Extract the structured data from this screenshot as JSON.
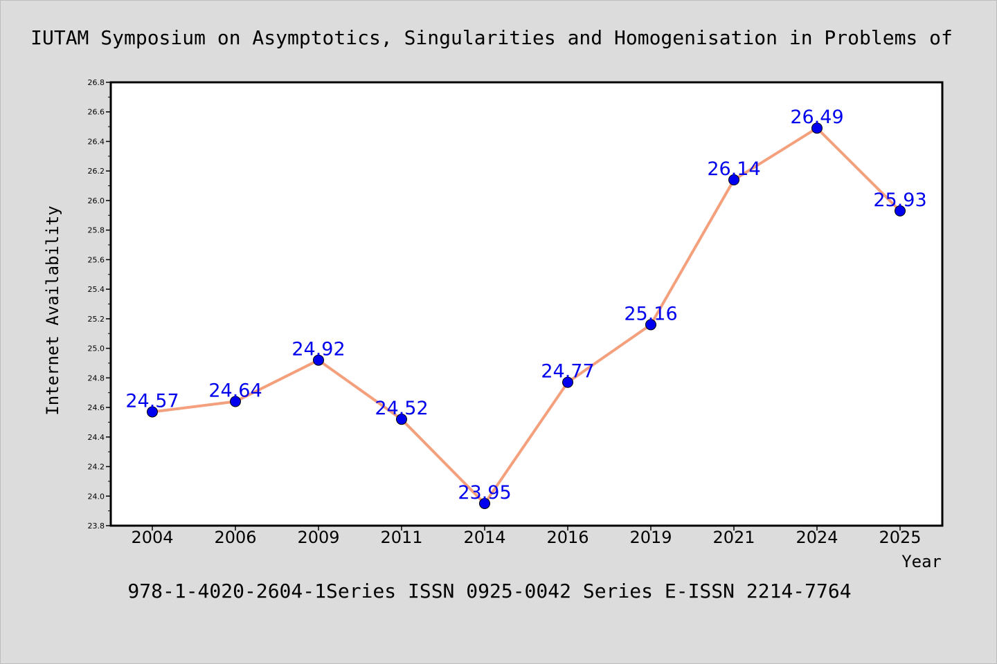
{
  "chart_data": {
    "type": "line",
    "title": "IUTAM Symposium on Asymptotics, Singularities and Homogenisation in Problems of",
    "xlabel": "Year",
    "ylabel": "Internet Availability",
    "footer": "978-1-4020-2604-1Series ISSN 0925-0042 Series E-ISSN 2214-7764",
    "categories": [
      "2004",
      "2006",
      "2009",
      "2011",
      "2014",
      "2016",
      "2019",
      "2021",
      "2024",
      "2025"
    ],
    "values": [
      24.57,
      24.64,
      24.92,
      24.52,
      23.95,
      24.77,
      25.16,
      26.14,
      26.49,
      25.93
    ],
    "value_labels": [
      "24.57",
      "24.64",
      "24.92",
      "24.52",
      "23.95",
      "24.77",
      "25.16",
      "26.14",
      "26.49",
      "25.93"
    ],
    "ylim": [
      23.8,
      26.8
    ],
    "yticks": [
      "23.8",
      "24.0",
      "24.2",
      "24.4",
      "24.6",
      "24.8",
      "25.0",
      "25.2",
      "25.4",
      "25.6",
      "25.8",
      "26.0",
      "26.2",
      "26.4",
      "26.6",
      "26.8"
    ],
    "grid": false,
    "colors": {
      "line": "#f4a07c",
      "marker": "#0000ee",
      "label": "#0000ee",
      "background": "#dcdcdc",
      "plot_background": "#ffffff"
    }
  }
}
